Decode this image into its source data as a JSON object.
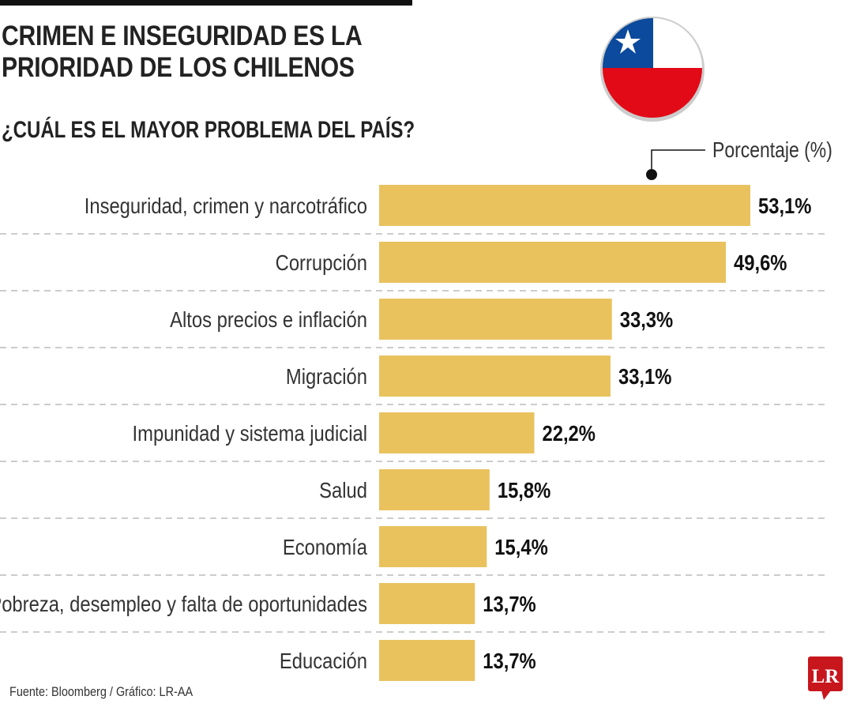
{
  "title": "CRIMEN E INSEGURIDAD ES LA PRIORIDAD DE LOS CHILENOS",
  "subtitle": "¿CUÁL ES EL MAYOR PROBLEMA DEL PAÍS?",
  "legend_label": "Porcentaje (%)",
  "source": "Fuente: Bloomberg / Gráfico: LR-AA",
  "logo_text": "LR",
  "colors": {
    "bar": "#E9C25E",
    "flag_blue": "#0B4A9C",
    "flag_red": "#E20A16",
    "logo_red": "#C8161D"
  },
  "chart_data": {
    "type": "bar",
    "orientation": "horizontal",
    "categories": [
      "Inseguridad, crimen y narcotráfico",
      "Corrupción",
      "Altos precios e inflación",
      "Migración",
      "Impunidad y sistema judicial",
      "Salud",
      "Economía",
      "Pobreza, desempleo y falta de oportunidades",
      "Educación"
    ],
    "values": [
      53.1,
      49.6,
      33.3,
      33.1,
      22.2,
      15.8,
      15.4,
      13.7,
      13.7
    ],
    "value_labels": [
      "53,1%",
      "49,6%",
      "33,3%",
      "33,1%",
      "22,2%",
      "15,8%",
      "15,4%",
      "13,7%",
      "13,7%"
    ],
    "title": "¿CUÁL ES EL MAYOR PROBLEMA DEL PAÍS?",
    "unit": "Porcentaje (%)",
    "grid": false
  }
}
